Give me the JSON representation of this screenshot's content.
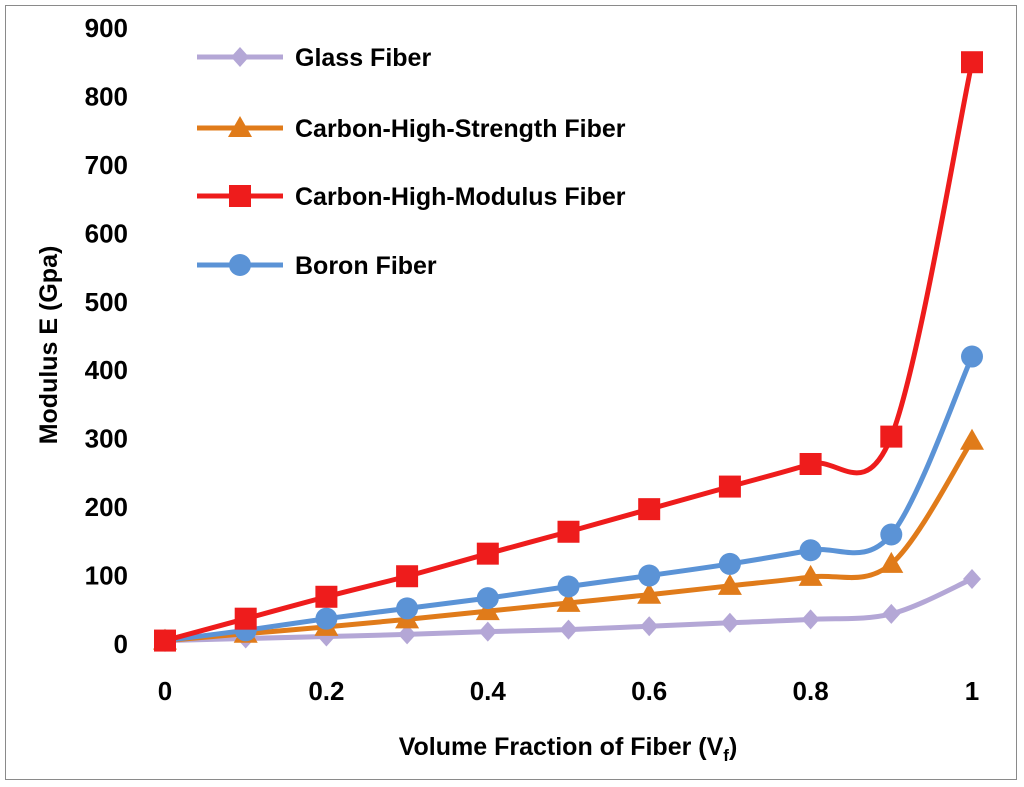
{
  "chart_data": {
    "type": "line",
    "title": "",
    "xlabel_main": "Volume Fraction of Fiber (V",
    "xlabel_sub": "f",
    "xlabel_close": ")",
    "ylabel": "Modulus E (Gpa)",
    "xlim": [
      0,
      1
    ],
    "ylim": [
      0,
      900
    ],
    "x_ticks": [
      "0",
      "0.2",
      "0.4",
      "0.6",
      "0.8",
      "1"
    ],
    "y_ticks": [
      "0",
      "100",
      "200",
      "300",
      "400",
      "500",
      "600",
      "700",
      "800",
      "900"
    ],
    "grid": false,
    "legend_position": "top-left",
    "x": [
      0,
      0.1,
      0.2,
      0.3,
      0.4,
      0.5,
      0.6,
      0.7,
      0.8,
      0.9,
      1
    ],
    "series": [
      {
        "name": "Glass Fiber",
        "color": "#b4a7d6",
        "marker": "diamond",
        "values": [
          5,
          8,
          11,
          14,
          18,
          21,
          26,
          31,
          36,
          44,
          95
        ]
      },
      {
        "name": "Carbon-High-Strength Fiber",
        "color": "#e07b1a",
        "marker": "triangle",
        "values": [
          5,
          15,
          25,
          36,
          48,
          60,
          72,
          85,
          98,
          117,
          297
        ]
      },
      {
        "name": "Carbon-High-Modulus Fiber",
        "color": "#ee1c1c",
        "marker": "square",
        "values": [
          5,
          37,
          69,
          99,
          132,
          164,
          197,
          230,
          263,
          303,
          850
        ]
      },
      {
        "name": "Boron Fiber",
        "color": "#5b93d6",
        "marker": "circle",
        "values": [
          5,
          20,
          37,
          52,
          67,
          84,
          100,
          117,
          137,
          160,
          420
        ]
      }
    ]
  }
}
